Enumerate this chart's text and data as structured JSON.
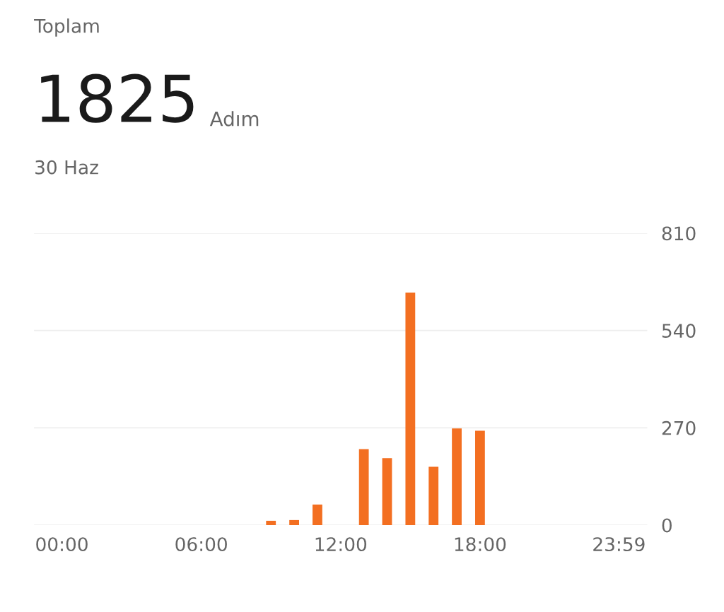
{
  "chart_data": {
    "type": "bar",
    "title": "Toplam",
    "subtitle": "30 Haz",
    "annotations": [
      "1825",
      "Adım"
    ],
    "x": [
      9,
      10,
      11,
      13,
      14,
      15,
      16,
      17,
      18
    ],
    "values": [
      12,
      14,
      57,
      211,
      186,
      645,
      162,
      268,
      262
    ],
    "color": "#f36f21",
    "xlim": [
      -1.2,
      25.2
    ],
    "xticks": [
      {
        "value": 0,
        "label": "00:00"
      },
      {
        "value": 6,
        "label": "06:00"
      },
      {
        "value": 12,
        "label": "12:00"
      },
      {
        "value": 18,
        "label": "18:00"
      },
      {
        "value": 23.98,
        "label": "23:59"
      }
    ],
    "ylim": [
      0,
      810
    ],
    "yticks": [
      0,
      270,
      540,
      810
    ],
    "grid": "y",
    "legend": false
  }
}
